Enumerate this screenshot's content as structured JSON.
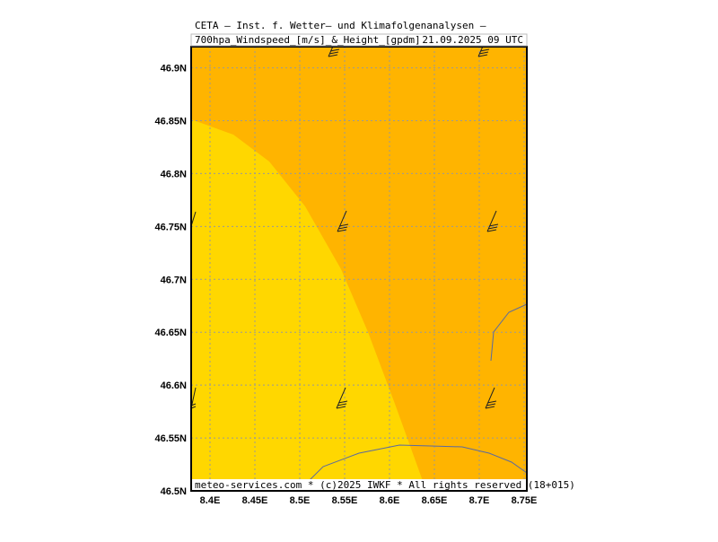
{
  "header": {
    "line1": "CETA — Inst. f. Wetter— und Klimafolgenanalysen —",
    "line2": "700hpa_Windspeed_[m/s]_&_Height_[gpdm]",
    "valid_time": "21.09.2025 09 UTC"
  },
  "map": {
    "lonlim": [
      8.379,
      8.753
    ],
    "latlim": [
      46.5,
      46.92
    ],
    "lon_ticks": [
      {
        "value": 8.4,
        "label": "8.4E"
      },
      {
        "value": 8.45,
        "label": "8.45E"
      },
      {
        "value": 8.5,
        "label": "8.5E"
      },
      {
        "value": 8.55,
        "label": "8.55E"
      },
      {
        "value": 8.6,
        "label": "8.6E"
      },
      {
        "value": 8.65,
        "label": "8.65E"
      },
      {
        "value": 8.7,
        "label": "8.7E"
      },
      {
        "value": 8.75,
        "label": "8.75E"
      }
    ],
    "lat_ticks": [
      {
        "value": 46.5,
        "label": "46.5N"
      },
      {
        "value": 46.55,
        "label": "46.55N"
      },
      {
        "value": 46.6,
        "label": "46.6N"
      },
      {
        "value": 46.65,
        "label": "46.65N"
      },
      {
        "value": 46.7,
        "label": "46.7N"
      },
      {
        "value": 46.75,
        "label": "46.75N"
      },
      {
        "value": 46.8,
        "label": "46.8N"
      },
      {
        "value": 46.85,
        "label": "46.85N"
      },
      {
        "value": 46.9,
        "label": "46.9N"
      }
    ]
  },
  "footer": "meteo-services.com * (c)2025 IWKF * All rights reserved (18+015)"
}
